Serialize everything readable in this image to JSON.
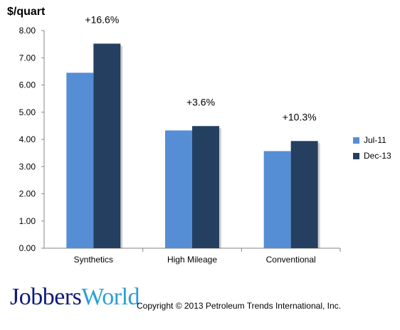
{
  "chart_data": {
    "type": "bar",
    "title": "",
    "ylabel": "$/quart",
    "xlabel": "",
    "ylim": [
      0,
      8
    ],
    "yticks": [
      "0.00",
      "1.00",
      "2.00",
      "3.00",
      "4.00",
      "5.00",
      "6.00",
      "7.00",
      "8.00"
    ],
    "categories": [
      "Synthetics",
      "High Mileage",
      "Conventional"
    ],
    "series": [
      {
        "name": "Jul-11",
        "values": [
          6.45,
          4.33,
          3.57
        ],
        "color": "#558ed5"
      },
      {
        "name": "Dec-13",
        "values": [
          7.52,
          4.49,
          3.94
        ],
        "color": "#243f60"
      }
    ],
    "annotations": [
      "+16.6%",
      "+3.6%",
      "+10.3%"
    ],
    "legend_position": "right",
    "grid": false
  },
  "footer": {
    "logo_part1": "Jobbers",
    "logo_part2": "World",
    "copyright": "Copyright © 2013 Petroleum Trends International, Inc."
  }
}
